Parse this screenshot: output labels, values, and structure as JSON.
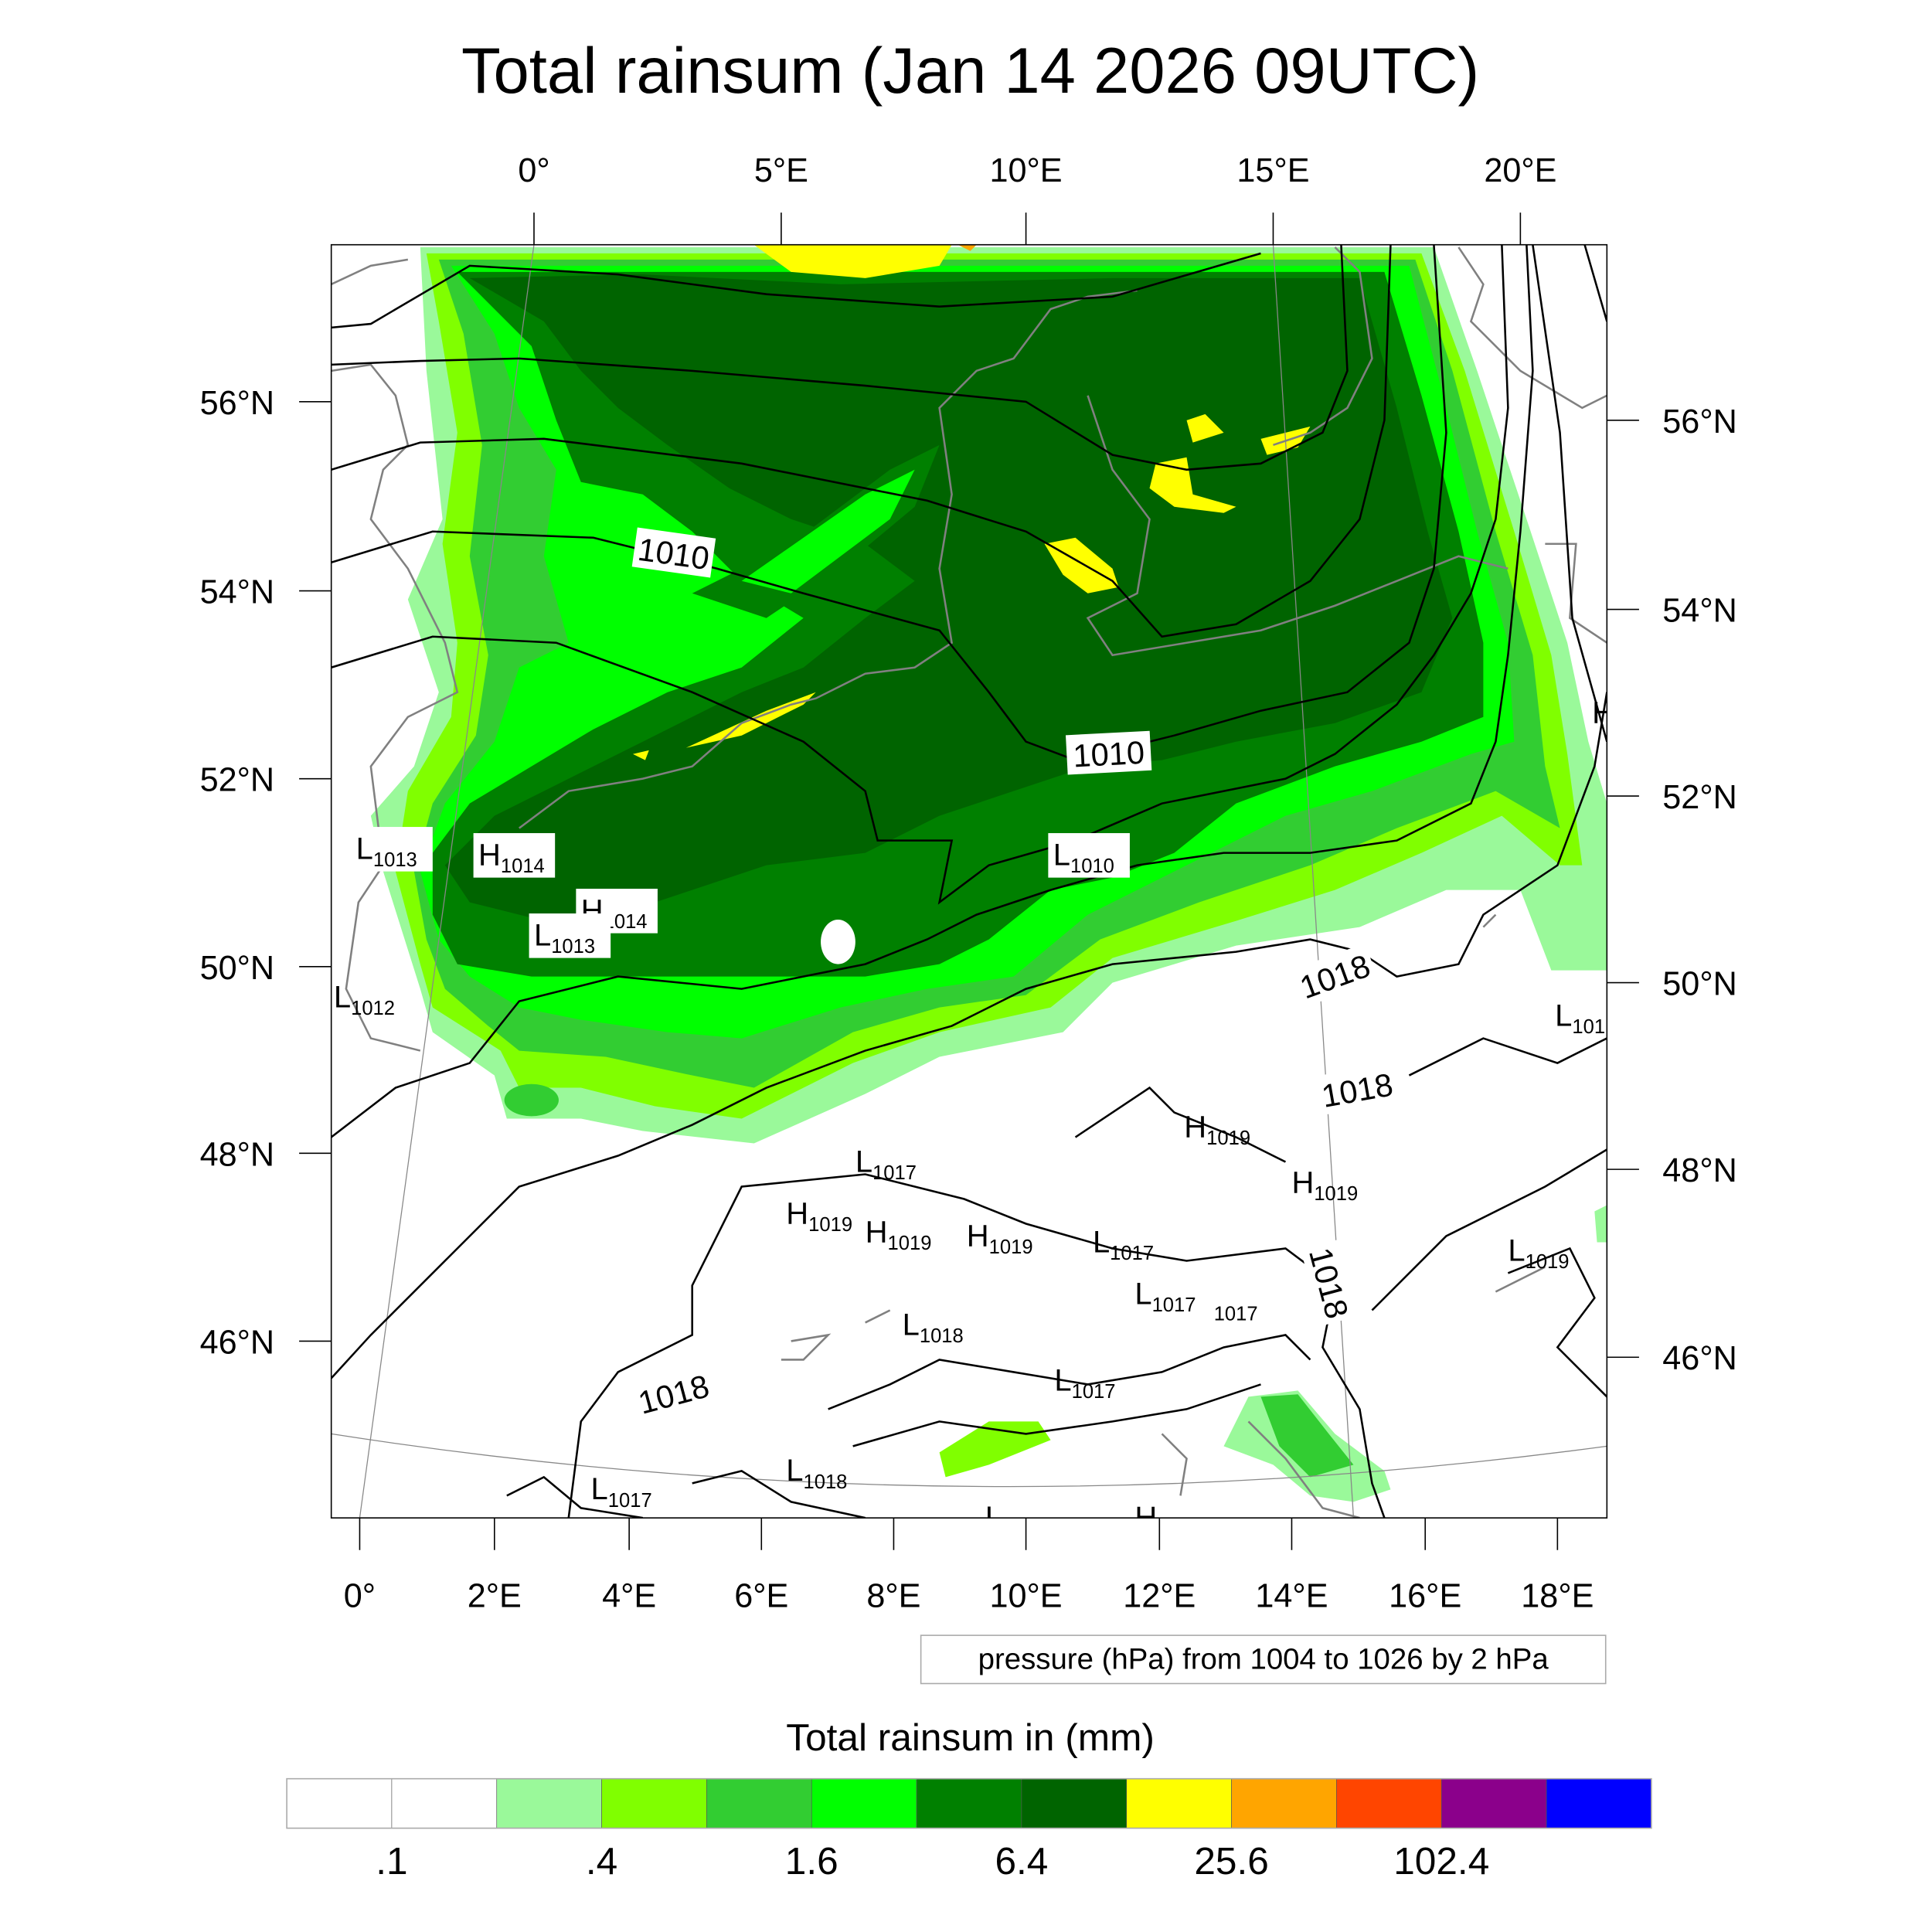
{
  "title": "Total rainsum (Jan 14 2026 09UTC)",
  "axes": {
    "top_lon": [
      "0°",
      "5°E",
      "10°E",
      "15°E",
      "20°E"
    ],
    "bottom_lon": [
      "0°",
      "2°E",
      "4°E",
      "6°E",
      "8°E",
      "10°E",
      "12°E",
      "14°E",
      "16°E",
      "18°E"
    ],
    "left_lat": [
      "56°N",
      "54°N",
      "52°N",
      "50°N",
      "48°N",
      "46°N"
    ],
    "right_lat": [
      "56°N",
      "54°N",
      "52°N",
      "50°N",
      "48°N",
      "46°N"
    ]
  },
  "contour_labels": [
    "1010",
    "1010",
    "1018",
    "1018",
    "1018",
    "1018"
  ],
  "pressure_centers": [
    {
      "type": "L",
      "value": "1013"
    },
    {
      "type": "H",
      "value": "1014"
    },
    {
      "type": "H",
      "value": "1014"
    },
    {
      "type": "L",
      "value": "1013"
    },
    {
      "type": "L",
      "value": "1012"
    },
    {
      "type": "L",
      "value": "1010"
    },
    {
      "type": "H",
      "value": ""
    },
    {
      "type": "L",
      "value": "101"
    },
    {
      "type": "H",
      "value": "1019"
    },
    {
      "type": "H",
      "value": "1019"
    },
    {
      "type": "L",
      "value": "1017"
    },
    {
      "type": "H",
      "value": "1019"
    },
    {
      "type": "H",
      "value": "1019"
    },
    {
      "type": "H",
      "value": "1019"
    },
    {
      "type": "L",
      "value": "1017"
    },
    {
      "type": "L",
      "value": "1019"
    },
    {
      "type": "L",
      "value": "1017"
    },
    {
      "type": "",
      "value": "1017"
    },
    {
      "type": "L",
      "value": "1018"
    },
    {
      "type": "L",
      "value": "1017"
    },
    {
      "type": "L",
      "value": "1017"
    },
    {
      "type": "L",
      "value": "1018"
    },
    {
      "type": "L",
      "value": ""
    },
    {
      "type": "H",
      "value": ""
    }
  ],
  "info_box": "pressure (hPa) from 1004 to 1026 by 2 hPa",
  "colorbar": {
    "title": "Total rainsum in (mm)",
    "colors": [
      "#FFFFFF",
      "#FFFFFF",
      "#9AF99A",
      "#80FF00",
      "#32CD32",
      "#00FF00",
      "#008000",
      "#006400",
      "#FFFF00",
      "#FFA500",
      "#FF4500",
      "#8B008B",
      "#0000FF"
    ],
    "tick_labels": [
      ".1",
      ".4",
      "1.6",
      "6.4",
      "25.6",
      "102.4"
    ]
  }
}
